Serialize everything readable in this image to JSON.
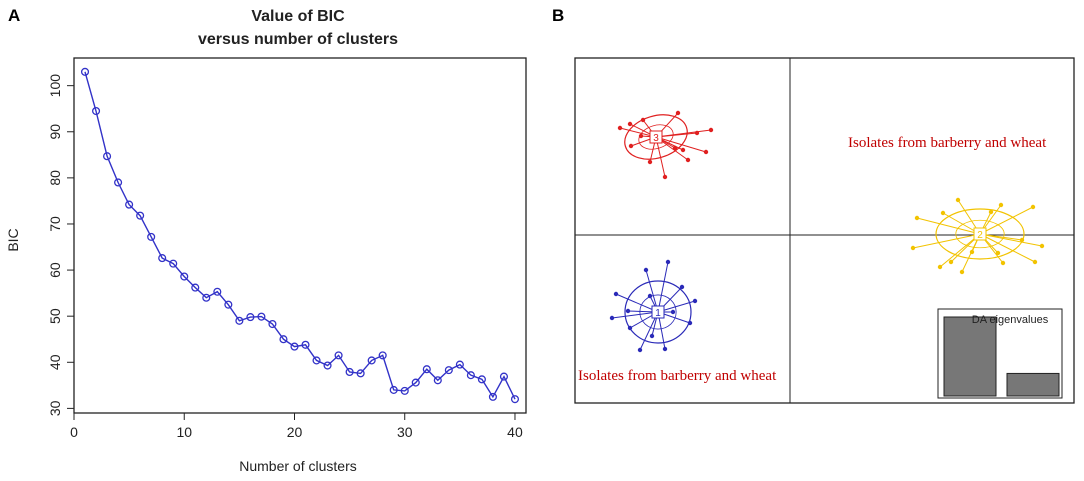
{
  "panels": {
    "a_label": "A",
    "b_label": "B"
  },
  "chart_data": [
    {
      "type": "line",
      "title": "Value of BIC",
      "subtitle": "versus number of clusters",
      "xlabel": "Number of clusters",
      "ylabel": "BIC",
      "xlim": [
        0,
        41
      ],
      "ylim": [
        29,
        106
      ],
      "xticks": [
        0,
        10,
        20,
        30,
        40
      ],
      "yticks": [
        30,
        40,
        50,
        60,
        70,
        80,
        90,
        100
      ],
      "color": "#3232c8",
      "x": [
        1,
        2,
        3,
        4,
        5,
        6,
        7,
        8,
        9,
        10,
        11,
        12,
        13,
        14,
        15,
        16,
        17,
        18,
        19,
        20,
        21,
        22,
        23,
        24,
        25,
        26,
        27,
        28,
        29,
        30,
        31,
        32,
        33,
        34,
        35,
        36,
        37,
        38,
        39,
        40
      ],
      "y": [
        103.0,
        94.5,
        84.7,
        79.0,
        74.2,
        71.8,
        67.2,
        62.6,
        61.4,
        58.6,
        56.2,
        54.0,
        55.3,
        52.5,
        49.0,
        49.8,
        49.9,
        48.3,
        45.0,
        43.4,
        43.8,
        40.4,
        39.3,
        41.5,
        37.9,
        37.6,
        40.4,
        41.5,
        34.0,
        33.8,
        35.6,
        38.5,
        36.1,
        38.3,
        39.5,
        37.2,
        36.3,
        32.5,
        36.9,
        32.0
      ]
    },
    {
      "type": "scatter",
      "subtype": "discriminant-analysis",
      "cluster_labels": [
        "1",
        "2",
        "3"
      ],
      "cluster_colors": [
        "#2a2ab8",
        "#f2c300",
        "#e02020"
      ],
      "annotations": [
        "Isolates from barberry and wheat",
        "Isolates from barberry and wheat"
      ],
      "eigen_title": "DA eigenvalues",
      "eigenvalues": [
        49,
        14
      ],
      "eigen_color": "#777777"
    }
  ]
}
